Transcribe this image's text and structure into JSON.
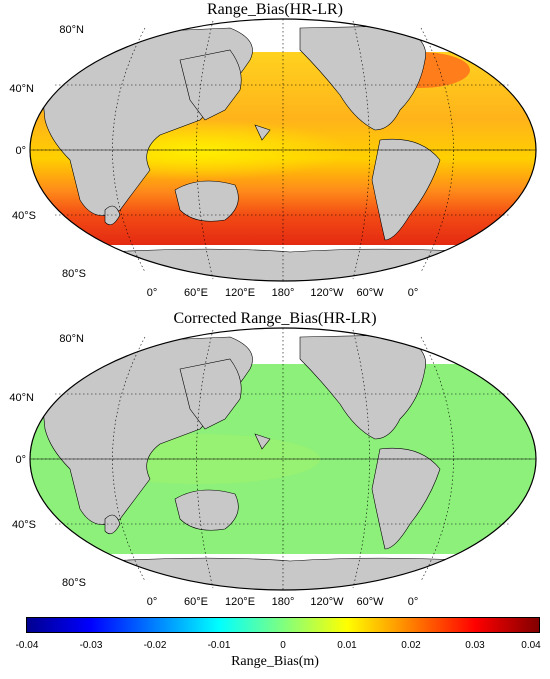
{
  "panels": [
    {
      "title": "Range_Bias(HR-LR)",
      "field": "raw",
      "lat_labels": [
        "80°N",
        "40°N",
        "0°",
        "40°S",
        "80°S"
      ],
      "lon_labels": [
        "0°",
        "60°E",
        "120°E",
        "180°",
        "120°W",
        "60°W",
        "0°"
      ]
    },
    {
      "title": "Corrected Range_Bias(HR-LR)",
      "field": "corrected",
      "lat_labels": [
        "80°N",
        "40°N",
        "0°",
        "40°S",
        "80°S"
      ],
      "lon_labels": [
        "0°",
        "60°E",
        "120°E",
        "180°",
        "120°W",
        "60°W",
        "0°"
      ]
    }
  ],
  "colorbar": {
    "label": "Range_Bias(m)",
    "min": -0.04,
    "max": 0.04,
    "ticks": [
      "-0.04",
      "-0.03",
      "-0.02",
      "-0.01",
      "0",
      "0.01",
      "0.02",
      "0.03",
      "0.04"
    ],
    "colormap": "jet"
  },
  "colors": {
    "land": "#c8c8c8",
    "no_data": "#ffffff",
    "outline": "#000000"
  }
}
